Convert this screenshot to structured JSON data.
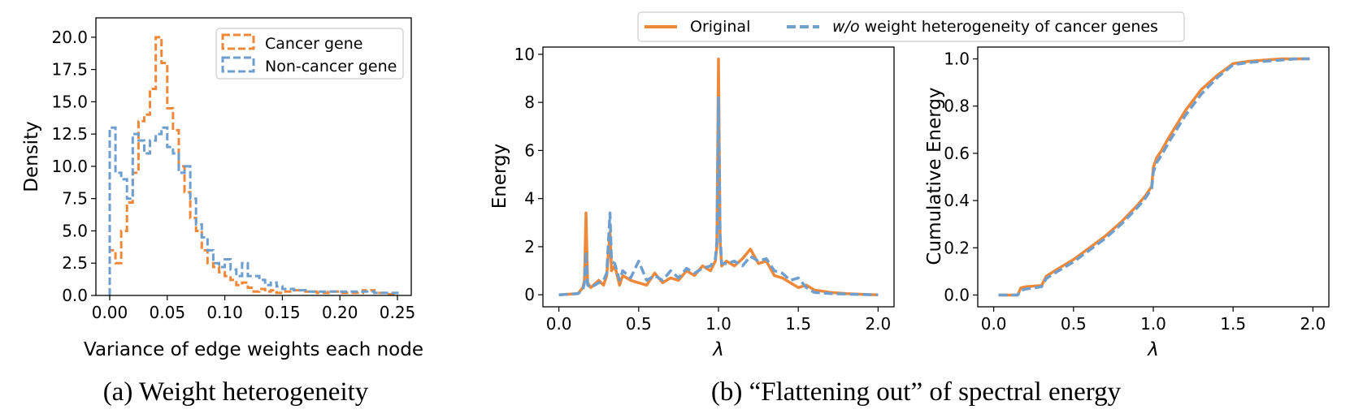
{
  "colors": {
    "orange": "#F0883A",
    "blue": "#6E9FCF"
  },
  "chart_data": [
    {
      "type": "histogram",
      "xlabel": "Variance of edge weights each node",
      "ylabel": "Density",
      "caption": "(a) Weight heterogeneity",
      "xlim": [
        -0.012,
        0.262
      ],
      "ylim": [
        0,
        21.5
      ],
      "xticks": [
        "0.00",
        "0.05",
        "0.10",
        "0.15",
        "0.20",
        "0.25"
      ],
      "yticks": [
        "0.0",
        "2.5",
        "5.0",
        "7.5",
        "10.0",
        "12.5",
        "15.0",
        "17.5",
        "20.0"
      ],
      "legend": [
        "Cancer gene",
        "Non-cancer gene"
      ],
      "bin_edges": [
        0.0,
        0.005,
        0.01,
        0.015,
        0.02,
        0.025,
        0.03,
        0.035,
        0.04,
        0.045,
        0.05,
        0.055,
        0.06,
        0.065,
        0.07,
        0.075,
        0.08,
        0.085,
        0.09,
        0.095,
        0.1,
        0.105,
        0.11,
        0.115,
        0.12,
        0.125,
        0.13,
        0.135,
        0.14,
        0.145,
        0.15,
        0.16,
        0.17,
        0.18,
        0.19,
        0.2,
        0.21,
        0.22,
        0.23,
        0.24,
        0.25
      ],
      "series": [
        {
          "name": "Cancer gene",
          "values": [
            3.5,
            2.5,
            5.0,
            7.2,
            9.5,
            13.5,
            14.0,
            16.0,
            20.0,
            18.0,
            14.5,
            12.8,
            10.0,
            8.0,
            6.0,
            5.0,
            3.5,
            2.5,
            2.2,
            1.8,
            1.5,
            1.2,
            0.8,
            1.0,
            0.6,
            0.3,
            0.5,
            0.3,
            0.4,
            0.2,
            0.3,
            0.4,
            0.3,
            0.2,
            0.3,
            0.2,
            0.2,
            0.4,
            0.2,
            0.1
          ]
        },
        {
          "name": "Non-cancer gene",
          "values": [
            13.0,
            9.5,
            9.0,
            7.5,
            12.5,
            12.0,
            11.0,
            12.0,
            12.5,
            13.0,
            11.5,
            11.0,
            9.5,
            10.0,
            7.5,
            5.5,
            4.5,
            3.5,
            2.5,
            2.2,
            2.8,
            2.0,
            1.5,
            2.5,
            1.5,
            1.5,
            1.2,
            0.8,
            1.0,
            0.7,
            0.5,
            0.4,
            0.3,
            0.3,
            0.3,
            0.3,
            0.3,
            0.3,
            0.2,
            0.2
          ]
        }
      ]
    },
    {
      "type": "line",
      "xlabel": "λ",
      "ylabel": "Energy",
      "xlim": [
        -0.1,
        2.1
      ],
      "ylim": [
        -0.5,
        10.3
      ],
      "xticks": [
        "0.0",
        "0.5",
        "1.0",
        "1.5",
        "2.0"
      ],
      "yticks": [
        "0",
        "2",
        "4",
        "6",
        "8",
        "10"
      ],
      "series": [
        {
          "name": "Original",
          "x": [
            0.0,
            0.12,
            0.15,
            0.16,
            0.17,
            0.18,
            0.2,
            0.25,
            0.28,
            0.3,
            0.32,
            0.33,
            0.35,
            0.38,
            0.4,
            0.45,
            0.5,
            0.55,
            0.6,
            0.65,
            0.7,
            0.75,
            0.8,
            0.85,
            0.9,
            0.95,
            0.98,
            0.99,
            1.0,
            1.01,
            1.02,
            1.05,
            1.1,
            1.15,
            1.2,
            1.25,
            1.3,
            1.35,
            1.4,
            1.45,
            1.5,
            1.55,
            1.6,
            1.7,
            1.8,
            1.9,
            2.0
          ],
          "y": [
            0.0,
            0.05,
            0.3,
            0.6,
            3.4,
            0.5,
            0.3,
            0.6,
            0.4,
            0.8,
            2.6,
            1.0,
            1.2,
            0.4,
            0.8,
            0.6,
            0.5,
            0.4,
            0.9,
            0.5,
            0.7,
            0.6,
            1.0,
            0.8,
            1.2,
            1.0,
            1.4,
            2.0,
            9.8,
            2.2,
            1.2,
            1.4,
            1.2,
            1.5,
            1.9,
            1.3,
            1.4,
            0.8,
            0.7,
            0.5,
            0.3,
            0.4,
            0.2,
            0.1,
            0.05,
            0.02,
            0.0
          ]
        },
        {
          "name": "w/o weight heterogeneity of cancer genes",
          "x": [
            0.0,
            0.12,
            0.15,
            0.16,
            0.17,
            0.18,
            0.2,
            0.25,
            0.28,
            0.3,
            0.32,
            0.33,
            0.35,
            0.38,
            0.4,
            0.45,
            0.5,
            0.55,
            0.6,
            0.65,
            0.7,
            0.75,
            0.8,
            0.85,
            0.9,
            0.95,
            0.98,
            0.99,
            1.0,
            1.01,
            1.02,
            1.05,
            1.1,
            1.15,
            1.2,
            1.25,
            1.3,
            1.35,
            1.4,
            1.45,
            1.5,
            1.55,
            1.6,
            1.7,
            1.8,
            1.9,
            2.0
          ],
          "y": [
            0.0,
            0.05,
            0.2,
            0.5,
            1.8,
            0.4,
            0.3,
            0.5,
            0.6,
            0.9,
            3.4,
            1.4,
            1.3,
            0.6,
            1.0,
            0.7,
            1.4,
            0.6,
            0.8,
            0.6,
            1.0,
            0.7,
            1.1,
            0.9,
            1.1,
            1.2,
            1.5,
            2.2,
            8.2,
            2.5,
            1.3,
            1.3,
            1.4,
            1.2,
            1.6,
            1.4,
            1.5,
            1.0,
            0.9,
            0.6,
            0.7,
            0.3,
            0.1,
            0.05,
            0.03,
            0.01,
            0.0
          ]
        }
      ]
    },
    {
      "type": "line",
      "xlabel": "λ",
      "ylabel": "Cumulative Energy",
      "xlim": [
        -0.1,
        2.1
      ],
      "ylim": [
        -0.05,
        1.05
      ],
      "xticks": [
        "0.0",
        "0.5",
        "1.0",
        "1.5",
        "2.0"
      ],
      "yticks": [
        "0.0",
        "0.2",
        "0.4",
        "0.6",
        "0.8",
        "1.0"
      ],
      "series": [
        {
          "name": "Original",
          "x": [
            0.03,
            0.15,
            0.17,
            0.2,
            0.3,
            0.33,
            0.4,
            0.5,
            0.6,
            0.7,
            0.8,
            0.9,
            0.95,
            0.99,
            1.0,
            1.02,
            1.05,
            1.1,
            1.2,
            1.3,
            1.4,
            1.5,
            1.6,
            1.7,
            1.8,
            1.9,
            1.98
          ],
          "y": [
            0.0,
            0.0,
            0.03,
            0.035,
            0.04,
            0.08,
            0.11,
            0.15,
            0.2,
            0.25,
            0.31,
            0.38,
            0.42,
            0.46,
            0.54,
            0.58,
            0.61,
            0.67,
            0.78,
            0.87,
            0.93,
            0.98,
            0.99,
            0.995,
            1.0,
            1.0,
            1.0
          ]
        },
        {
          "name": "w/o weight heterogeneity of cancer genes",
          "x": [
            0.03,
            0.15,
            0.17,
            0.2,
            0.3,
            0.33,
            0.4,
            0.5,
            0.6,
            0.7,
            0.8,
            0.9,
            0.95,
            0.99,
            1.0,
            1.02,
            1.05,
            1.1,
            1.2,
            1.3,
            1.4,
            1.5,
            1.6,
            1.7,
            1.8,
            1.9,
            1.98
          ],
          "y": [
            0.0,
            0.0,
            0.02,
            0.025,
            0.035,
            0.07,
            0.1,
            0.14,
            0.19,
            0.24,
            0.3,
            0.37,
            0.41,
            0.45,
            0.52,
            0.56,
            0.59,
            0.65,
            0.76,
            0.85,
            0.92,
            0.975,
            0.985,
            0.99,
            0.995,
            1.0,
            1.0
          ]
        }
      ]
    }
  ],
  "shared_legend": {
    "original": "Original",
    "wo_italic": "w/o",
    "wo_rest": " weight heterogeneity of cancer genes"
  },
  "caption_b": "(b) “Flattening out” of spectral energy"
}
